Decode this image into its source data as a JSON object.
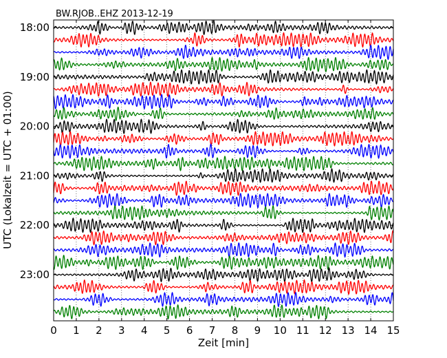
{
  "chart_data": {
    "type": "line",
    "plot_kind": "dayplot-seismogram",
    "title": "BW.RJOB..EHZ 2013-12-19",
    "xlabel": "Zeit  [min]",
    "ylabel": "UTC (Lokalzeit = UTC + 01:00)",
    "xlim": [
      0,
      15
    ],
    "x_ticks": [
      0,
      1,
      2,
      3,
      4,
      5,
      6,
      7,
      8,
      9,
      10,
      11,
      12,
      13,
      14,
      15
    ],
    "x_tick_labels": [
      "0",
      "1",
      "2",
      "3",
      "4",
      "5",
      "6",
      "7",
      "8",
      "9",
      "10",
      "11",
      "12",
      "13",
      "14",
      "15"
    ],
    "y_tick_labels": [
      "18:00",
      "19:00",
      "20:00",
      "21:00",
      "22:00",
      "23:00"
    ],
    "y_tick_row_index": [
      0,
      4,
      8,
      12,
      16,
      20
    ],
    "interval_minutes": 15,
    "grid": "vertical dotted at each minute",
    "trace_colors": [
      "#000000",
      "#ff0000",
      "#0000ff",
      "#008000"
    ],
    "traces": [
      {
        "start": "18:00",
        "color": "#000000"
      },
      {
        "start": "18:15",
        "color": "#ff0000"
      },
      {
        "start": "18:30",
        "color": "#0000ff"
      },
      {
        "start": "18:45",
        "color": "#008000"
      },
      {
        "start": "19:00",
        "color": "#000000"
      },
      {
        "start": "19:15",
        "color": "#ff0000"
      },
      {
        "start": "19:30",
        "color": "#0000ff"
      },
      {
        "start": "19:45",
        "color": "#008000"
      },
      {
        "start": "20:00",
        "color": "#000000"
      },
      {
        "start": "20:15",
        "color": "#ff0000"
      },
      {
        "start": "20:30",
        "color": "#0000ff"
      },
      {
        "start": "20:45",
        "color": "#008000"
      },
      {
        "start": "21:00",
        "color": "#000000"
      },
      {
        "start": "21:15",
        "color": "#ff0000"
      },
      {
        "start": "21:30",
        "color": "#0000ff"
      },
      {
        "start": "21:45",
        "color": "#008000"
      },
      {
        "start": "22:00",
        "color": "#000000"
      },
      {
        "start": "22:15",
        "color": "#ff0000"
      },
      {
        "start": "22:30",
        "color": "#0000ff"
      },
      {
        "start": "22:45",
        "color": "#008000"
      },
      {
        "start": "23:00",
        "color": "#000000"
      },
      {
        "start": "23:15",
        "color": "#ff0000"
      },
      {
        "start": "23:30",
        "color": "#0000ff"
      },
      {
        "start": "23:45",
        "color": "#008000"
      }
    ]
  }
}
